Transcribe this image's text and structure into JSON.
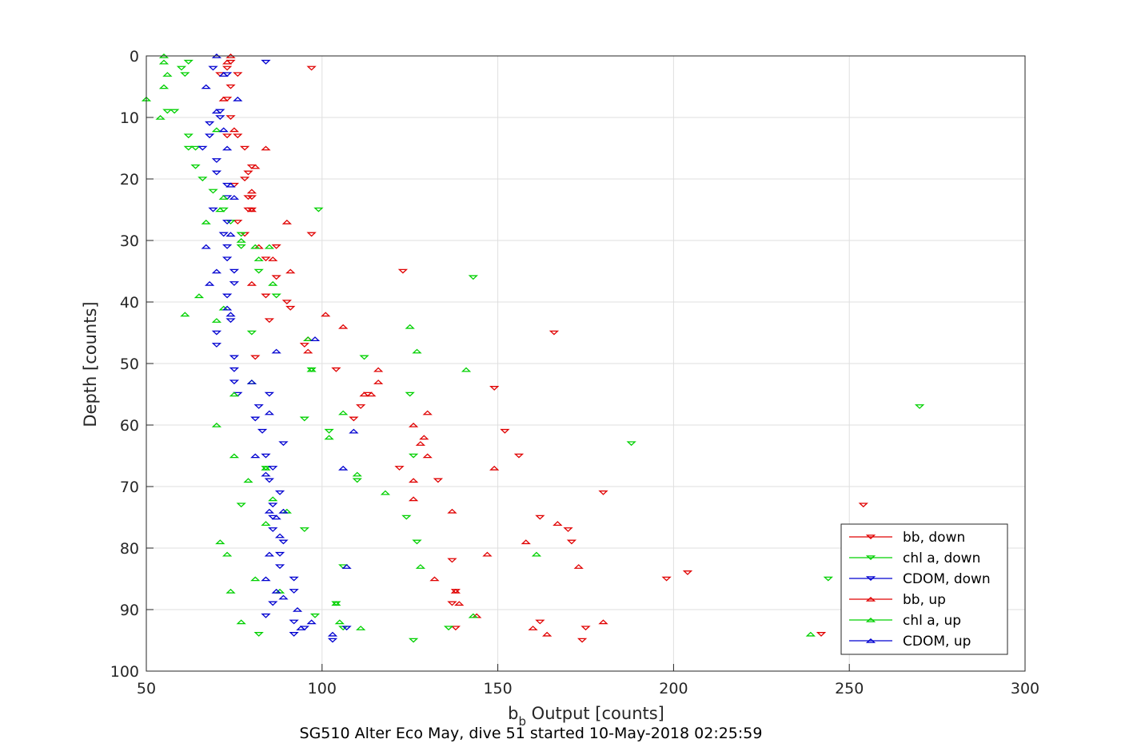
{
  "chart_data": {
    "type": "scatter",
    "title": "SG510 Alter Eco May, dive 51 started 10-May-2018 02:25:59",
    "xlabel_main": "b",
    "xlabel_sub": "b",
    "xlabel_rest": " Output [counts]",
    "ylabel": "Depth [counts]",
    "xlim": [
      50,
      300
    ],
    "ylim": [
      0,
      100
    ],
    "y_reversed": true,
    "grid": true,
    "xticks": [
      "50",
      "100",
      "150",
      "200",
      "250",
      "300"
    ],
    "yticks": [
      "0",
      "10",
      "20",
      "30",
      "40",
      "50",
      "60",
      "70",
      "80",
      "90",
      "100"
    ],
    "legend_location": "bottom-right",
    "series": [
      {
        "name": "bb, down",
        "color": "#e00000",
        "marker": "triangle-down",
        "points": [
          [
            74,
            1
          ],
          [
            97,
            2
          ],
          [
            73,
            2
          ],
          [
            76,
            3
          ],
          [
            71,
            3
          ],
          [
            74,
            5
          ],
          [
            73,
            7
          ],
          [
            74,
            10
          ],
          [
            76,
            13
          ],
          [
            73,
            13
          ],
          [
            78,
            15
          ],
          [
            80,
            18
          ],
          [
            79,
            19
          ],
          [
            78,
            20
          ],
          [
            75,
            21
          ],
          [
            79,
            23
          ],
          [
            80,
            23
          ],
          [
            80,
            25
          ],
          [
            79,
            25
          ],
          [
            76,
            27
          ],
          [
            78,
            29
          ],
          [
            97,
            29
          ],
          [
            87,
            31
          ],
          [
            84,
            33
          ],
          [
            123,
            35
          ],
          [
            87,
            36
          ],
          [
            84,
            39
          ],
          [
            90,
            40
          ],
          [
            91,
            41
          ],
          [
            85,
            43
          ],
          [
            166,
            45
          ],
          [
            95,
            47
          ],
          [
            81,
            49
          ],
          [
            104,
            51
          ],
          [
            149,
            54
          ],
          [
            113,
            55
          ],
          [
            111,
            57
          ],
          [
            109,
            59
          ],
          [
            152,
            61
          ],
          [
            156,
            65
          ],
          [
            122,
            67
          ],
          [
            133,
            69
          ],
          [
            180,
            71
          ],
          [
            254,
            73
          ],
          [
            162,
            75
          ],
          [
            170,
            77
          ],
          [
            171,
            79
          ],
          [
            137,
            82
          ],
          [
            204,
            84
          ],
          [
            198,
            85
          ],
          [
            138,
            87
          ],
          [
            137,
            89
          ],
          [
            162,
            92
          ],
          [
            175,
            93
          ],
          [
            138,
            93
          ],
          [
            174,
            95
          ],
          [
            242,
            94
          ]
        ]
      },
      {
        "name": "chl a, down",
        "color": "#00d000",
        "marker": "triangle-down",
        "points": [
          [
            62,
            1
          ],
          [
            60,
            2
          ],
          [
            61,
            3
          ],
          [
            58,
            9
          ],
          [
            56,
            9
          ],
          [
            62,
            13
          ],
          [
            64,
            15
          ],
          [
            62,
            15
          ],
          [
            64,
            18
          ],
          [
            66,
            20
          ],
          [
            69,
            22
          ],
          [
            72,
            25
          ],
          [
            99,
            25
          ],
          [
            74,
            27
          ],
          [
            77,
            29
          ],
          [
            77,
            31
          ],
          [
            82,
            35
          ],
          [
            143,
            36
          ],
          [
            87,
            39
          ],
          [
            80,
            45
          ],
          [
            112,
            49
          ],
          [
            97,
            51
          ],
          [
            125,
            55
          ],
          [
            270,
            57
          ],
          [
            95,
            59
          ],
          [
            102,
            61
          ],
          [
            188,
            63
          ],
          [
            126,
            65
          ],
          [
            84,
            67
          ],
          [
            110,
            69
          ],
          [
            77,
            73
          ],
          [
            124,
            75
          ],
          [
            95,
            77
          ],
          [
            127,
            79
          ],
          [
            106,
            83
          ],
          [
            244,
            85
          ],
          [
            104,
            89
          ],
          [
            106,
            93
          ],
          [
            136,
            93
          ],
          [
            126,
            95
          ],
          [
            82,
            94
          ],
          [
            98,
            91
          ]
        ]
      },
      {
        "name": "CDOM, down",
        "color": "#0000d0",
        "marker": "triangle-down",
        "points": [
          [
            84,
            1
          ],
          [
            69,
            2
          ],
          [
            73,
            3
          ],
          [
            71,
            9
          ],
          [
            71,
            10
          ],
          [
            68,
            11
          ],
          [
            68,
            13
          ],
          [
            66,
            15
          ],
          [
            70,
            17
          ],
          [
            70,
            19
          ],
          [
            73,
            21
          ],
          [
            73,
            23
          ],
          [
            69,
            25
          ],
          [
            73,
            27
          ],
          [
            72,
            29
          ],
          [
            73,
            31
          ],
          [
            73,
            33
          ],
          [
            75,
            35
          ],
          [
            75,
            37
          ],
          [
            73,
            39
          ],
          [
            74,
            43
          ],
          [
            70,
            45
          ],
          [
            70,
            47
          ],
          [
            75,
            49
          ],
          [
            75,
            51
          ],
          [
            75,
            53
          ],
          [
            76,
            55
          ],
          [
            85,
            55
          ],
          [
            82,
            57
          ],
          [
            81,
            59
          ],
          [
            83,
            61
          ],
          [
            89,
            63
          ],
          [
            84,
            65
          ],
          [
            86,
            67
          ],
          [
            85,
            69
          ],
          [
            88,
            71
          ],
          [
            86,
            73
          ],
          [
            86,
            75
          ],
          [
            86,
            77
          ],
          [
            89,
            79
          ],
          [
            88,
            81
          ],
          [
            88,
            83
          ],
          [
            92,
            85
          ],
          [
            92,
            87
          ],
          [
            86,
            89
          ],
          [
            84,
            91
          ],
          [
            92,
            92
          ],
          [
            95,
            93
          ],
          [
            107,
            93
          ],
          [
            92,
            94
          ],
          [
            103,
            95
          ]
        ]
      },
      {
        "name": "bb, up",
        "color": "#e00000",
        "marker": "triangle-up",
        "points": [
          [
            74,
            0
          ],
          [
            73,
            1
          ],
          [
            72,
            7
          ],
          [
            75,
            12
          ],
          [
            84,
            15
          ],
          [
            81,
            18
          ],
          [
            80,
            22
          ],
          [
            80,
            25
          ],
          [
            90,
            27
          ],
          [
            82,
            31
          ],
          [
            86,
            33
          ],
          [
            91,
            35
          ],
          [
            80,
            37
          ],
          [
            101,
            42
          ],
          [
            106,
            44
          ],
          [
            96,
            46
          ],
          [
            96,
            48
          ],
          [
            116,
            51
          ],
          [
            116,
            53
          ],
          [
            114,
            55
          ],
          [
            112,
            55
          ],
          [
            130,
            58
          ],
          [
            126,
            60
          ],
          [
            129,
            62
          ],
          [
            128,
            63
          ],
          [
            130,
            65
          ],
          [
            149,
            67
          ],
          [
            126,
            69
          ],
          [
            126,
            72
          ],
          [
            137,
            74
          ],
          [
            167,
            76
          ],
          [
            158,
            79
          ],
          [
            147,
            81
          ],
          [
            173,
            83
          ],
          [
            132,
            85
          ],
          [
            138,
            87
          ],
          [
            139,
            89
          ],
          [
            144,
            91
          ],
          [
            180,
            92
          ],
          [
            160,
            93
          ],
          [
            164,
            94
          ]
        ]
      },
      {
        "name": "chl a, up",
        "color": "#00d000",
        "marker": "triangle-up",
        "points": [
          [
            55,
            0
          ],
          [
            55,
            1
          ],
          [
            56,
            3
          ],
          [
            55,
            5
          ],
          [
            50,
            7
          ],
          [
            54,
            10
          ],
          [
            70,
            12
          ],
          [
            71,
            25
          ],
          [
            67,
            27
          ],
          [
            72,
            23
          ],
          [
            77,
            30
          ],
          [
            85,
            31
          ],
          [
            81,
            31
          ],
          [
            82,
            33
          ],
          [
            86,
            37
          ],
          [
            65,
            39
          ],
          [
            72,
            41
          ],
          [
            61,
            42
          ],
          [
            70,
            43
          ],
          [
            125,
            44
          ],
          [
            96,
            46
          ],
          [
            127,
            48
          ],
          [
            141,
            51
          ],
          [
            97,
            51
          ],
          [
            106,
            58
          ],
          [
            80,
            53
          ],
          [
            75,
            55
          ],
          [
            70,
            60
          ],
          [
            75,
            65
          ],
          [
            102,
            62
          ],
          [
            84,
            67
          ],
          [
            110,
            68
          ],
          [
            79,
            69
          ],
          [
            118,
            71
          ],
          [
            86,
            72
          ],
          [
            84,
            76
          ],
          [
            90,
            74
          ],
          [
            71,
            79
          ],
          [
            73,
            81
          ],
          [
            128,
            83
          ],
          [
            81,
            85
          ],
          [
            74,
            87
          ],
          [
            88,
            87
          ],
          [
            104,
            89
          ],
          [
            77,
            92
          ],
          [
            111,
            93
          ],
          [
            105,
            92
          ],
          [
            143,
            91
          ],
          [
            239,
            94
          ],
          [
            161,
            81
          ]
        ]
      },
      {
        "name": "CDOM, up",
        "color": "#0000d0",
        "marker": "triangle-up",
        "points": [
          [
            70,
            0
          ],
          [
            72,
            3
          ],
          [
            67,
            5
          ],
          [
            76,
            7
          ],
          [
            70,
            9
          ],
          [
            72,
            12
          ],
          [
            73,
            15
          ],
          [
            74,
            21
          ],
          [
            75,
            23
          ],
          [
            74,
            29
          ],
          [
            67,
            31
          ],
          [
            70,
            35
          ],
          [
            68,
            37
          ],
          [
            74,
            42
          ],
          [
            73,
            41
          ],
          [
            98,
            46
          ],
          [
            87,
            48
          ],
          [
            80,
            53
          ],
          [
            85,
            58
          ],
          [
            81,
            65
          ],
          [
            106,
            67
          ],
          [
            109,
            61
          ],
          [
            84,
            68
          ],
          [
            85,
            74
          ],
          [
            87,
            75
          ],
          [
            89,
            74
          ],
          [
            85,
            81
          ],
          [
            88,
            78
          ],
          [
            107,
            83
          ],
          [
            84,
            85
          ],
          [
            87,
            87
          ],
          [
            89,
            88
          ],
          [
            93,
            90
          ],
          [
            94,
            93
          ],
          [
            97,
            92
          ],
          [
            103,
            94
          ]
        ]
      }
    ]
  }
}
